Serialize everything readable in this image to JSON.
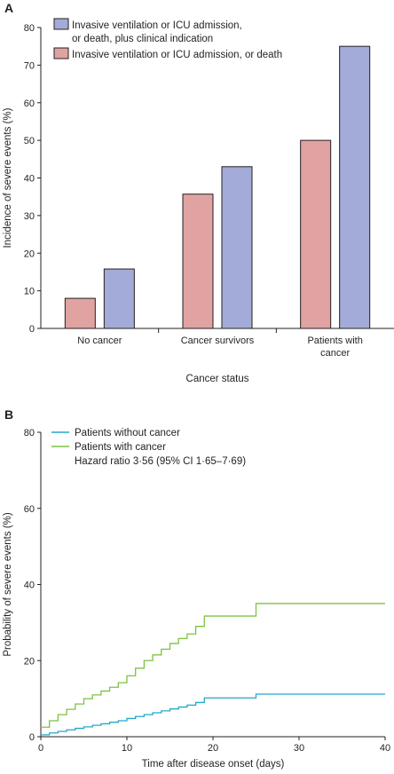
{
  "colors": {
    "survivor_pink": "#e0a3a1",
    "blue": "#a3acd8",
    "line_without_cancer": "#25a8c6",
    "line_with_cancer": "#7dc243",
    "axis": "#231f20"
  },
  "chart_data": [
    {
      "panel": "A",
      "type": "bar",
      "xlabel": "Cancer status",
      "ylabel": "Incidence of severe events (%)",
      "ylim": [
        0,
        80
      ],
      "yticks": [
        0,
        10,
        20,
        30,
        40,
        50,
        60,
        70,
        80
      ],
      "categories": [
        [
          "No cancer"
        ],
        [
          "Cancer survivors"
        ],
        [
          "Patients with",
          "cancer"
        ]
      ],
      "series": [
        {
          "name": "Invasive ventilation or ICU admission, or death",
          "color": "#e0a3a1",
          "values": [
            8,
            35.7,
            50
          ]
        },
        {
          "name": "Invasive ventilation or ICU admission, or death, plus clinical indication",
          "legend_lines": [
            "Invasive ventilation or ICU admission,",
            "or death, plus clinical indication"
          ],
          "color": "#a3acd8",
          "values": [
            15.8,
            43,
            75
          ]
        }
      ],
      "legend_order": [
        1,
        0
      ],
      "legend_position": "top-left",
      "grid": false
    },
    {
      "panel": "B",
      "type": "line",
      "step": true,
      "xlabel": "Time after disease onset (days)",
      "ylabel": "Probability of severe events (%)",
      "xlim": [
        0,
        40
      ],
      "ylim": [
        0,
        80
      ],
      "xticks": [
        0,
        10,
        20,
        30,
        40
      ],
      "yticks": [
        0,
        20,
        40,
        60,
        80
      ],
      "annotation": "Hazard ratio 3·56 (95% CI 1·65–7·69)",
      "legend_position": "top-left",
      "grid": false,
      "series": [
        {
          "name": "Patients without cancer",
          "color": "#25a8c6",
          "x": [
            0,
            1,
            2,
            3,
            4,
            5,
            6,
            7,
            8,
            9,
            10,
            11,
            12,
            13,
            14,
            15,
            16,
            17,
            18,
            19,
            25,
            40
          ],
          "y": [
            0.5,
            1,
            1.4,
            1.8,
            2.2,
            2.6,
            3,
            3.4,
            3.8,
            4.2,
            4.8,
            5.3,
            5.8,
            6.3,
            6.8,
            7.3,
            7.8,
            8.3,
            9,
            10.2,
            11.2,
            11.2
          ]
        },
        {
          "name": "Patients with cancer",
          "color": "#7dc243",
          "x": [
            0,
            1,
            2,
            3,
            4,
            5,
            6,
            7,
            8,
            9,
            10,
            11,
            12,
            13,
            14,
            15,
            16,
            17,
            18,
            19,
            25,
            40
          ],
          "y": [
            2.5,
            4.2,
            5.8,
            7.2,
            8.6,
            10,
            11,
            12,
            13,
            14.2,
            16,
            18,
            20,
            21.5,
            23,
            24.5,
            25.8,
            27,
            29,
            31.7,
            35,
            35
          ]
        }
      ]
    }
  ]
}
